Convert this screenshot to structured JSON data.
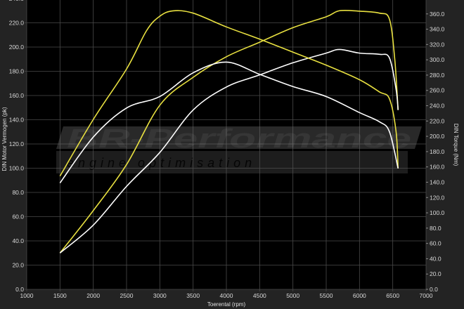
{
  "chart_data": {
    "type": "line",
    "xlabel": "Toerental (rpm)",
    "ylabel_left": "DIN Motor Vermogen (pk)",
    "ylabel_right": "DIN Torque (Nm)",
    "xlim": [
      1000,
      7000
    ],
    "ylim_left": [
      0,
      240
    ],
    "ylim_right": [
      0,
      380
    ],
    "x_ticks": [
      1000,
      1500,
      2000,
      2500,
      3000,
      3500,
      4000,
      4500,
      5000,
      5500,
      6000,
      6500,
      7000
    ],
    "y_ticks_left": [
      0,
      20,
      40,
      60,
      80,
      100,
      120,
      140,
      160,
      180,
      200,
      220,
      240
    ],
    "y_ticks_right": [
      0,
      20,
      40,
      60,
      80,
      100,
      120,
      140,
      160,
      180,
      200,
      220,
      240,
      260,
      280,
      300,
      320,
      340,
      360
    ],
    "grid": true,
    "background": "#000000",
    "series": [
      {
        "axis": "left",
        "color": "#e8e040",
        "x": [
          1500,
          2000,
          2500,
          3000,
          3500,
          4000,
          4500,
          5000,
          5500,
          5700,
          6000,
          6300,
          6450,
          6530,
          6580
        ],
        "values": [
          30,
          65,
          103,
          152,
          175,
          192,
          204,
          216,
          225,
          230,
          229.6,
          228,
          223,
          190,
          148
        ]
      },
      {
        "axis": "left",
        "color": "#ffffff",
        "x": [
          1500,
          2000,
          2500,
          3000,
          3500,
          4000,
          4500,
          5000,
          5500,
          5700,
          6000,
          6300,
          6450,
          6550,
          6580
        ],
        "values": [
          30,
          53,
          85,
          113,
          148,
          167,
          177,
          187,
          195,
          198,
          195,
          194,
          191,
          165,
          148
        ]
      },
      {
        "axis": "right",
        "color": "#e8e040",
        "x": [
          1500,
          2000,
          2500,
          2800,
          3000,
          3200,
          3500,
          4000,
          4500,
          5000,
          5500,
          6000,
          6300,
          6450,
          6550,
          6580
        ],
        "values": [
          148,
          222,
          288,
          338,
          357,
          364,
          361,
          343,
          327,
          310,
          293,
          274,
          258,
          249,
          206,
          158
        ]
      },
      {
        "axis": "right",
        "color": "#ffffff",
        "x": [
          1500,
          2000,
          2500,
          3000,
          3500,
          4000,
          4500,
          5000,
          5500,
          6000,
          6300,
          6450,
          6580
        ],
        "values": [
          139,
          199,
          237,
          252,
          283,
          297,
          281,
          265,
          252,
          231,
          219,
          206,
          158
        ]
      }
    ]
  },
  "watermark": {
    "brand": "BR-Performance",
    "tagline": "engine optimisation"
  }
}
